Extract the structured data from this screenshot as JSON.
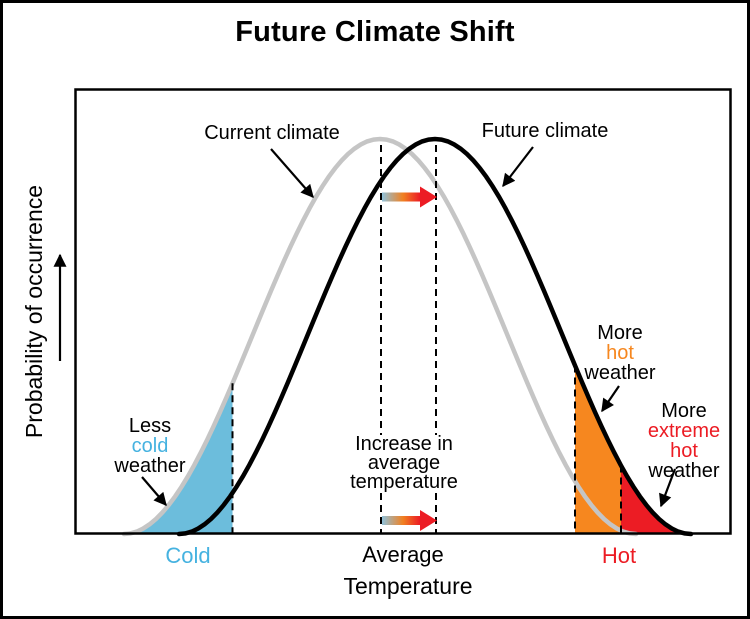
{
  "title": "Future Climate Shift",
  "y_axis": {
    "label": "Probability of occurrence"
  },
  "x_axis": {
    "cold": "Cold",
    "average": "Average",
    "hot": "Hot",
    "label": "Temperature"
  },
  "curve_labels": {
    "current": "Current climate",
    "future": "Future climate"
  },
  "annotations": {
    "less_cold": {
      "l1": "Less",
      "l2": "cold",
      "l3": "weather"
    },
    "increase": {
      "l1": "Increase in",
      "l2": "average",
      "l3": "temperature"
    },
    "more_hot": {
      "l1": "More",
      "l2": "hot",
      "l3": "weather"
    },
    "more_extreme_hot": {
      "l1": "More",
      "l2": "extreme",
      "l3": "hot",
      "l4": "weather"
    }
  },
  "colors": {
    "ink": "#000000",
    "current_curve": "#C5C5C5",
    "future_curve": "#000000",
    "cold_fill": "#6CBDDC",
    "hot_fill": "#F6871F",
    "extreme_fill": "#EC1C24",
    "cold_text": "#45B2E0",
    "hot_text": "#F6871F",
    "extreme_text": "#EC1C24",
    "gradient_start": "#8FC2DB",
    "gradient_mid": "#F08122",
    "gradient_end": "#EC1C24"
  }
}
